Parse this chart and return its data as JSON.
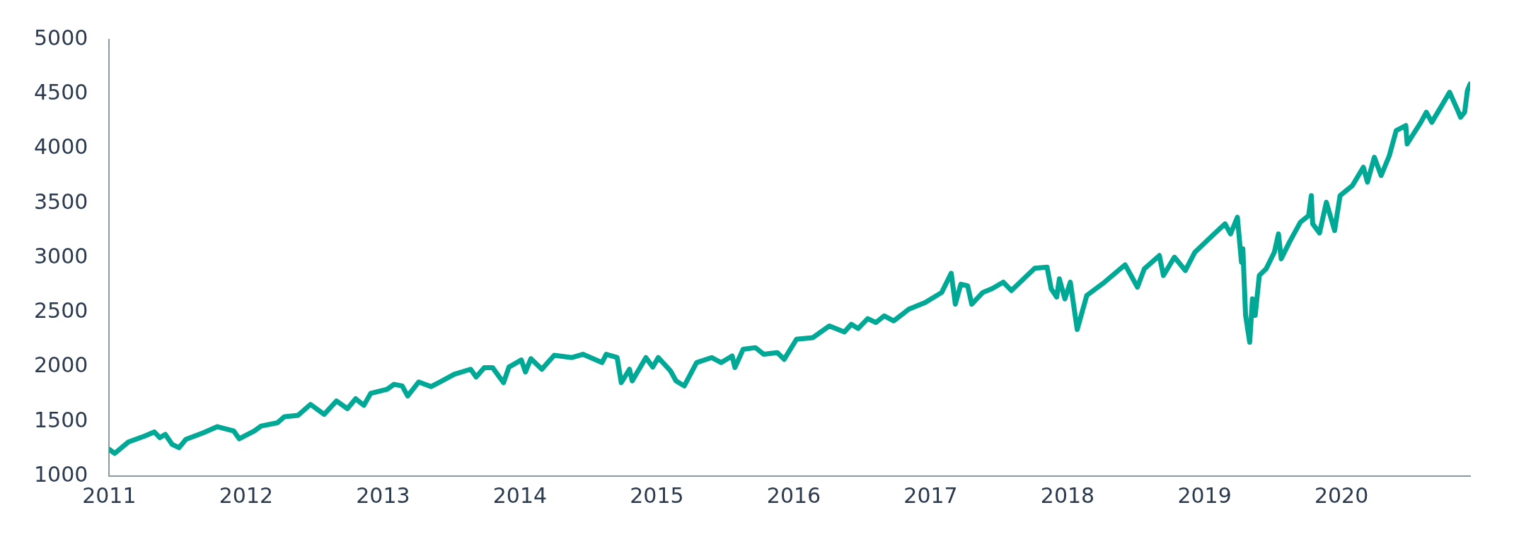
{
  "chart_data": {
    "type": "line",
    "xlim": [
      2011,
      2020.94
    ],
    "xticks": [
      2011,
      2012,
      2013,
      2014,
      2015,
      2016,
      2017,
      2018,
      2019,
      2020
    ],
    "ylim": [
      1000,
      5000
    ],
    "yticks": [
      1000,
      1500,
      2000,
      2500,
      3000,
      3500,
      4000,
      4500,
      5000
    ],
    "grid": false,
    "legend": false,
    "x": [
      2011.0,
      2011.04,
      2011.14,
      2011.26,
      2011.33,
      2011.37,
      2011.41,
      2011.46,
      2011.51,
      2011.56,
      2011.69,
      2011.79,
      2011.91,
      2011.95,
      2012.06,
      2012.11,
      2012.23,
      2012.28,
      2012.38,
      2012.47,
      2012.57,
      2012.66,
      2012.74,
      2012.8,
      2012.86,
      2012.91,
      2013.03,
      2013.08,
      2013.14,
      2013.18,
      2013.26,
      2013.35,
      2013.43,
      2013.52,
      2013.64,
      2013.68,
      2013.74,
      2013.8,
      2013.88,
      2013.92,
      2014.01,
      2014.04,
      2014.08,
      2014.16,
      2014.25,
      2014.38,
      2014.46,
      2014.6,
      2014.63,
      2014.71,
      2014.74,
      2014.8,
      2014.82,
      2014.92,
      2014.97,
      2015.01,
      2015.1,
      2015.14,
      2015.2,
      2015.29,
      2015.4,
      2015.47,
      2015.55,
      2015.57,
      2015.63,
      2015.72,
      2015.78,
      2015.88,
      2015.93,
      2016.02,
      2016.14,
      2016.26,
      2016.37,
      2016.42,
      2016.47,
      2016.54,
      2016.6,
      2016.66,
      2016.73,
      2016.84,
      2016.96,
      2017.08,
      2017.15,
      2017.18,
      2017.22,
      2017.27,
      2017.3,
      2017.38,
      2017.45,
      2017.53,
      2017.59,
      2017.76,
      2017.85,
      2017.88,
      2017.92,
      2017.94,
      2017.98,
      2018.02,
      2018.07,
      2018.14,
      2018.27,
      2018.42,
      2018.51,
      2018.56,
      2018.67,
      2018.7,
      2018.78,
      2018.86,
      2018.93,
      2019.07,
      2019.15,
      2019.19,
      2019.24,
      2019.27,
      2019.28,
      2019.3,
      2019.33,
      2019.35,
      2019.37,
      2019.4,
      2019.45,
      2019.51,
      2019.54,
      2019.56,
      2019.62,
      2019.7,
      2019.76,
      2019.78,
      2019.79,
      2019.84,
      2019.89,
      2019.95,
      2019.99,
      2020.08,
      2020.16,
      2020.19,
      2020.24,
      2020.29,
      2020.35,
      2020.4,
      2020.47,
      2020.48,
      2020.58,
      2020.62,
      2020.66,
      2020.79,
      2020.85,
      2020.87,
      2020.9,
      2020.92,
      2020.94
    ],
    "series": [
      {
        "color": "#00a896",
        "values": [
          1245,
          1208,
          1312,
          1367,
          1404,
          1352,
          1382,
          1290,
          1260,
          1336,
          1398,
          1453,
          1413,
          1342,
          1413,
          1459,
          1489,
          1544,
          1557,
          1657,
          1566,
          1688,
          1618,
          1709,
          1648,
          1758,
          1795,
          1841,
          1826,
          1734,
          1862,
          1820,
          1872,
          1933,
          1979,
          1908,
          1994,
          1994,
          1856,
          1999,
          2064,
          1954,
          2076,
          1979,
          2107,
          2086,
          2116,
          2040,
          2116,
          2086,
          1856,
          1979,
          1872,
          2086,
          1999,
          2086,
          1963,
          1872,
          1826,
          2040,
          2086,
          2040,
          2101,
          1994,
          2162,
          2177,
          2116,
          2131,
          2070,
          2254,
          2269,
          2376,
          2321,
          2391,
          2352,
          2443,
          2407,
          2468,
          2422,
          2529,
          2590,
          2682,
          2859,
          2575,
          2758,
          2743,
          2575,
          2682,
          2719,
          2777,
          2700,
          2905,
          2914,
          2716,
          2640,
          2807,
          2624,
          2777,
          2343,
          2655,
          2777,
          2936,
          2731,
          2899,
          3021,
          2838,
          3006,
          2884,
          3052,
          3219,
          3311,
          3219,
          3372,
          2960,
          3082,
          2472,
          2227,
          2624,
          2472,
          2838,
          2899,
          3052,
          3219,
          2991,
          3143,
          3326,
          3387,
          3570,
          3311,
          3228,
          3509,
          3250,
          3570,
          3662,
          3830,
          3693,
          3922,
          3754,
          3937,
          4166,
          4212,
          4044,
          4242,
          4334,
          4242,
          4517,
          4349,
          4288,
          4334,
          4532,
          4593
        ]
      }
    ]
  }
}
